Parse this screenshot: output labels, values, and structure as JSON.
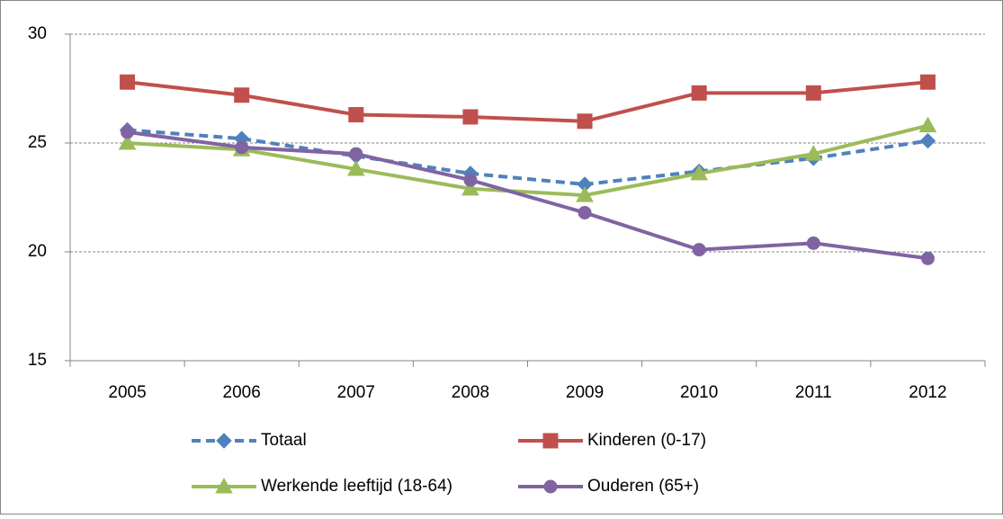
{
  "chart_data": {
    "type": "line",
    "categories": [
      "2005",
      "2006",
      "2007",
      "2008",
      "2009",
      "2010",
      "2011",
      "2012"
    ],
    "series": [
      {
        "name": "Totaal",
        "color": "#4f81bd",
        "marker": "diamond",
        "dashed": true,
        "values": [
          25.6,
          25.2,
          24.4,
          23.6,
          23.1,
          23.7,
          24.3,
          25.1
        ]
      },
      {
        "name": "Kinderen (0-17)",
        "color": "#c0504d",
        "marker": "square",
        "dashed": false,
        "values": [
          27.8,
          27.2,
          26.3,
          26.2,
          26.0,
          27.3,
          27.3,
          27.8
        ]
      },
      {
        "name": "Werkende leeftijd (18-64)",
        "color": "#9bbb59",
        "marker": "triangle",
        "dashed": false,
        "values": [
          25.0,
          24.7,
          23.8,
          22.9,
          22.6,
          23.6,
          24.5,
          25.8
        ]
      },
      {
        "name": "Ouderen (65+)",
        "color": "#8064a2",
        "marker": "circle",
        "dashed": false,
        "values": [
          25.5,
          24.8,
          24.5,
          23.3,
          21.8,
          20.1,
          20.4,
          19.7
        ]
      }
    ],
    "ylim": [
      15,
      30
    ],
    "yticks": [
      15,
      20,
      25,
      30
    ],
    "grid": true,
    "legend": "bottom"
  }
}
